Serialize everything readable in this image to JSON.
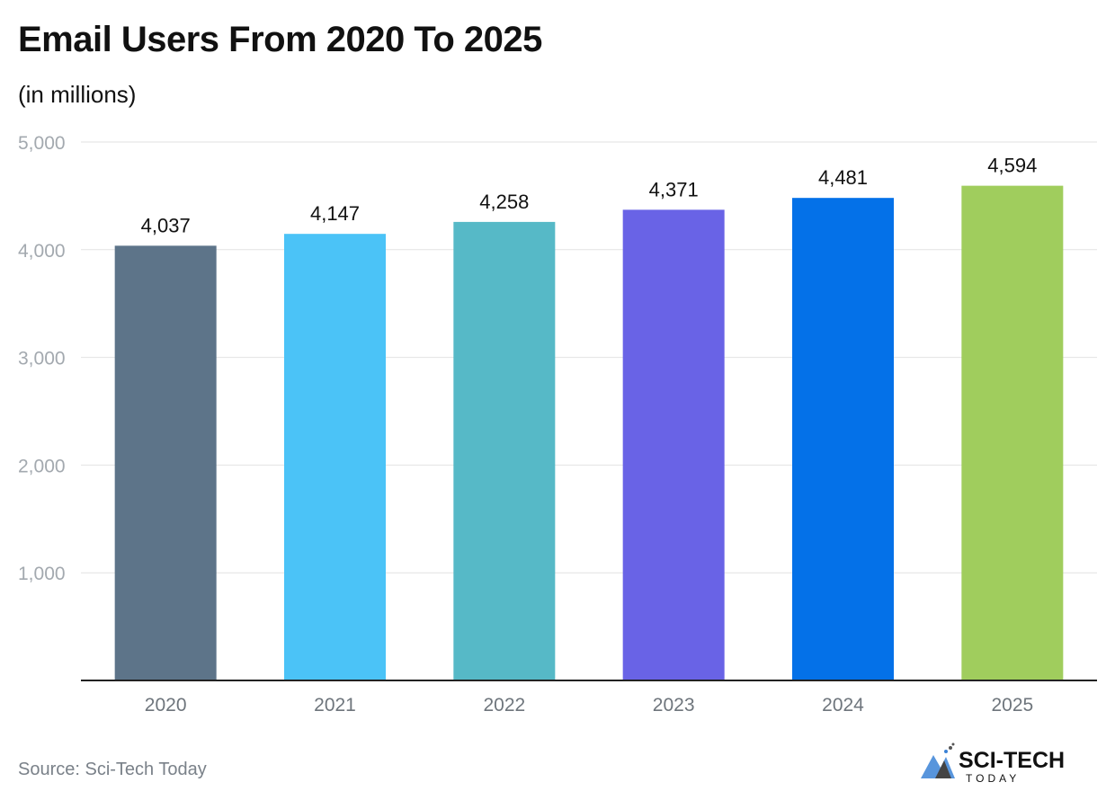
{
  "chart_data": {
    "type": "bar",
    "title": "Email Users From 2020 To 2025",
    "subtitle": "(in millions)",
    "categories": [
      "2020",
      "2021",
      "2022",
      "2023",
      "2024",
      "2025"
    ],
    "values": [
      4037,
      4147,
      4258,
      4371,
      4481,
      4594
    ],
    "data_labels": [
      "4,037",
      "4,147",
      "4,258",
      "4,371",
      "4,481",
      "4,594"
    ],
    "colors": [
      "#5d7489",
      "#4bc3f7",
      "#56b9c7",
      "#6963e6",
      "#0471e8",
      "#a0cd5d"
    ],
    "ylim": [
      0,
      5000
    ],
    "yticks": [
      1000,
      2000,
      3000,
      4000,
      5000
    ],
    "ytick_labels": [
      "1,000",
      "2,000",
      "3,000",
      "4,000",
      "5,000"
    ],
    "grid": true,
    "source": "Source: Sci-Tech Today"
  },
  "logo": {
    "text": "SCI-TECH",
    "subtext": "TODAY"
  }
}
